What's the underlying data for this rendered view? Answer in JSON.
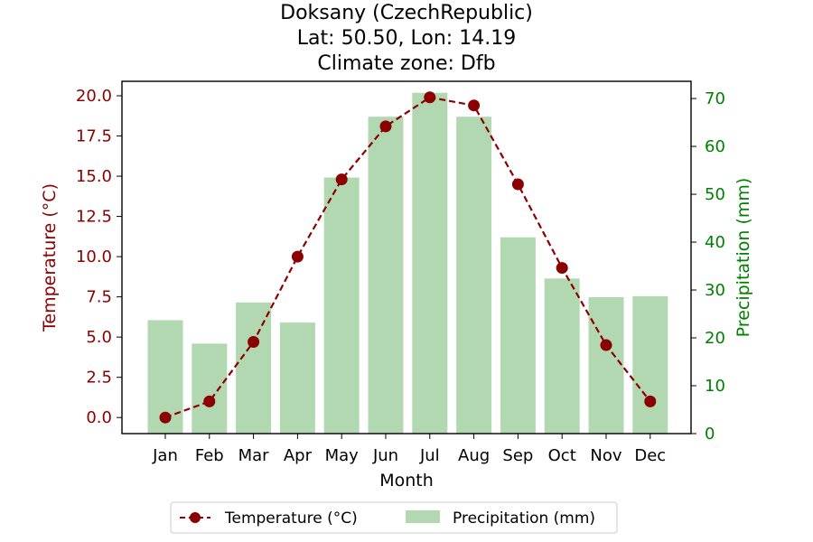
{
  "chart_data": {
    "type": "bar+line",
    "title": [
      "Doksany (CzechRepublic)",
      "Lat: 50.50, Lon: 14.19",
      "Climate zone: Dfb"
    ],
    "categories": [
      "Jan",
      "Feb",
      "Mar",
      "Apr",
      "May",
      "Jun",
      "Jul",
      "Aug",
      "Sep",
      "Oct",
      "Nov",
      "Dec"
    ],
    "xlabel": "Month",
    "ylabel_left": "Temperature (°C)",
    "ylabel_right": "Precipitation (mm)",
    "ylim_left": [
      -1.0,
      20.9
    ],
    "ylim_right": [
      0,
      73.6
    ],
    "left_ticks": [
      "0.0",
      "2.5",
      "5.0",
      "7.5",
      "10.0",
      "12.5",
      "15.0",
      "17.5",
      "20.0"
    ],
    "right_ticks": [
      "0",
      "10",
      "20",
      "30",
      "40",
      "50",
      "60",
      "70"
    ],
    "series": [
      {
        "name": "Temperature (°C)",
        "axis": "left",
        "kind": "line",
        "style": "dashed",
        "marker": "circle",
        "color": "#8b0000",
        "values": [
          0.0,
          1.0,
          4.7,
          10.0,
          14.8,
          18.1,
          19.9,
          19.4,
          14.5,
          9.3,
          4.5,
          1.0
        ]
      },
      {
        "name": "Precipitation (mm)",
        "axis": "right",
        "kind": "bar",
        "color": "#b2d8b2",
        "values": [
          23.7,
          18.8,
          27.4,
          23.2,
          53.5,
          66.2,
          71.2,
          66.2,
          41.0,
          32.4,
          28.5,
          28.7
        ]
      }
    ],
    "legend": {
      "position": "bottom-center",
      "items": [
        "Temperature (°C)",
        "Precipitation (mm)"
      ]
    },
    "colors": {
      "left_axis": "#8b0000",
      "right_axis": "#008000",
      "temperature": "#8b0000",
      "precipitation": "#b2d8b2"
    },
    "grid": false
  }
}
